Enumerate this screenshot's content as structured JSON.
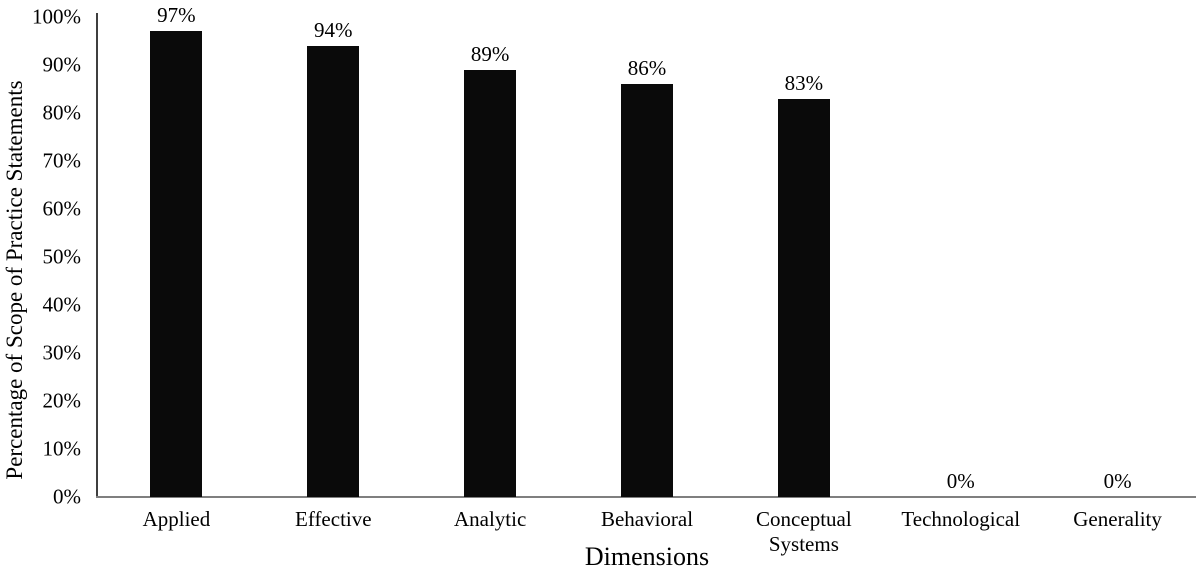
{
  "chart_data": {
    "type": "bar",
    "title": "",
    "xlabel": "Dimensions",
    "ylabel": "Percentage of Scope of Practice Statements",
    "categories": [
      "Applied",
      "Effective",
      "Analytic",
      "Behavioral",
      "Conceptual Systems",
      "Technological",
      "Generality"
    ],
    "values": [
      97,
      94,
      89,
      86,
      83,
      0,
      0
    ],
    "value_labels": [
      "97%",
      "94%",
      "89%",
      "86%",
      "83%",
      "0%",
      "0%"
    ],
    "ylim": [
      0,
      100
    ],
    "yticks": [
      {
        "value": 0,
        "label": "0%"
      },
      {
        "value": 10,
        "label": "10%"
      },
      {
        "value": 20,
        "label": "20%"
      },
      {
        "value": 30,
        "label": "30%"
      },
      {
        "value": 40,
        "label": "40%"
      },
      {
        "value": 50,
        "label": "50%"
      },
      {
        "value": 60,
        "label": "60%"
      },
      {
        "value": 70,
        "label": "70%"
      },
      {
        "value": 80,
        "label": "80%"
      },
      {
        "value": 90,
        "label": "90%"
      },
      {
        "value": 100,
        "label": "100%"
      }
    ],
    "grid": false,
    "legend": false,
    "colors": {
      "bar": "#0a0a0a",
      "y_axis_line": "#3f3f3f",
      "x_axis_line": "#7f7f7f",
      "text": "#000000",
      "background": "#ffffff"
    }
  }
}
